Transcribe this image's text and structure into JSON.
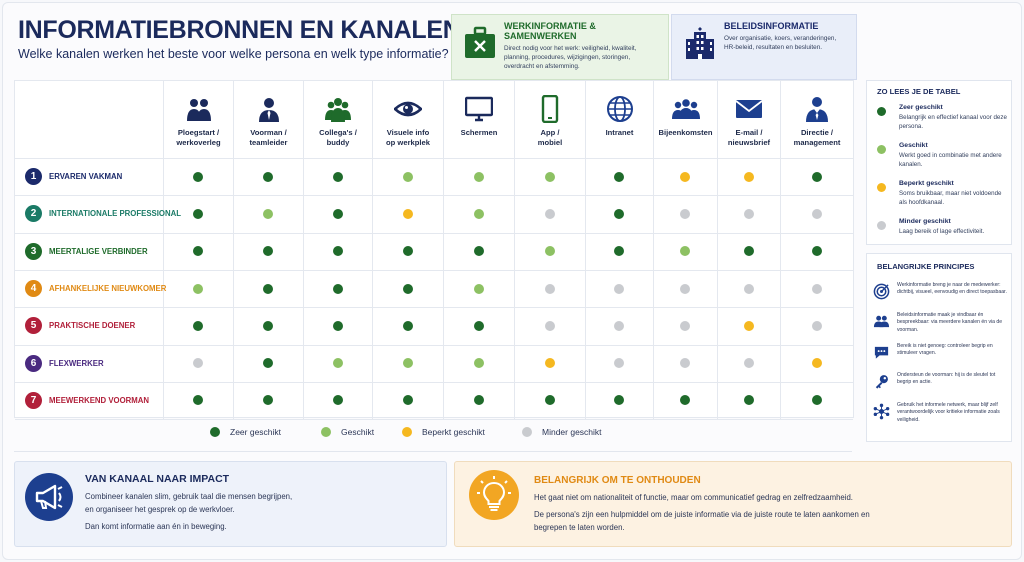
{
  "header": {
    "title": "INFORMATIEBRONNEN EN KANALEN",
    "subtitle": "Welke kanalen werken het beste voor welke persona en welk type informatie?"
  },
  "info_boxes": {
    "werk": {
      "title": "WERKINFORMATIE & SAMENWERKEN",
      "lines": [
        "Direct nodig voor het werk: veiligheid, kwaliteit,",
        "planning, procedures, wijzigingen, storingen,",
        "overdracht en afstemming."
      ],
      "icon": "briefcase-icon",
      "color": "#1f6b2b"
    },
    "beleid": {
      "title": "BELEIDSINFORMATIE",
      "lines": [
        "Over organisatie, koers, veranderingen,",
        "HR-beleid, resultaten en besluiten."
      ],
      "icon": "building-icon",
      "color": "#1b2a6b"
    }
  },
  "channels": [
    {
      "label": [
        "Ploegstart /",
        "werkoverleg"
      ],
      "icon": "team-meeting-icon",
      "color": "#1b2a5c"
    },
    {
      "label": [
        "Voorman /",
        "teamleider"
      ],
      "icon": "supervisor-icon",
      "color": "#1b2a5c"
    },
    {
      "label": [
        "Collega's /",
        "buddy"
      ],
      "icon": "colleagues-icon",
      "color": "#1f6b2b"
    },
    {
      "label": [
        "Visuele info",
        "op werkplek"
      ],
      "icon": "eye-icon",
      "color": "#1b2a5c"
    },
    {
      "label": [
        "Schermen"
      ],
      "icon": "monitor-icon",
      "color": "#1b2a5c"
    },
    {
      "label": [
        "App /",
        "mobiel"
      ],
      "icon": "mobile-icon",
      "color": "#1f6b2b"
    },
    {
      "label": [
        "Intranet"
      ],
      "icon": "globe-icon",
      "color": "#1d3f8f"
    },
    {
      "label": [
        "Bijeenkomsten"
      ],
      "icon": "group-icon",
      "color": "#1d3f8f"
    },
    {
      "label": [
        "E-mail /",
        "nieuwsbrief"
      ],
      "icon": "envelope-icon",
      "color": "#1d3f8f"
    },
    {
      "label": [
        "Directie /",
        "management"
      ],
      "icon": "manager-icon",
      "color": "#1d3f8f"
    }
  ],
  "personas": [
    {
      "num": "1",
      "name": "ERVAREN VAKMAN",
      "color": "#1b2a6b",
      "ratings": [
        3,
        3,
        3,
        2,
        2,
        2,
        3,
        1,
        1,
        3
      ]
    },
    {
      "num": "2",
      "name": "INTERNATIONALE PROFESSIONAL",
      "color": "#1a7a66",
      "ratings": [
        3,
        2,
        3,
        1,
        2,
        0,
        3,
        0,
        0,
        0
      ]
    },
    {
      "num": "3",
      "name": "MEERTALIGE VERBINDER",
      "color": "#1f6b2b",
      "ratings": [
        3,
        3,
        3,
        3,
        3,
        2,
        3,
        2,
        3,
        3
      ]
    },
    {
      "num": "4",
      "name": "AFHANKELIJKE NIEUWKOMER",
      "color": "#e08a14",
      "ratings": [
        2,
        3,
        3,
        3,
        2,
        0,
        0,
        0,
        0,
        0
      ]
    },
    {
      "num": "5",
      "name": "PRAKTISCHE DOENER",
      "color": "#b1203a",
      "ratings": [
        3,
        3,
        3,
        3,
        3,
        0,
        0,
        0,
        1,
        0
      ]
    },
    {
      "num": "6",
      "name": "FLEXWERKER",
      "color": "#4a2a80",
      "ratings": [
        0,
        3,
        2,
        2,
        2,
        1,
        0,
        0,
        0,
        1
      ]
    },
    {
      "num": "7",
      "name": "MEEWERKEND VOORMAN",
      "color": "#b1203a",
      "ratings": [
        3,
        3,
        3,
        3,
        3,
        3,
        3,
        3,
        3,
        3
      ]
    }
  ],
  "rating_colors": {
    "3": "#1f6b2b",
    "2": "#8dc163",
    "1": "#f5b820",
    "0": "#c9cbcf"
  },
  "legend": [
    {
      "level": "3",
      "label": "Zeer geschikt"
    },
    {
      "level": "2",
      "label": "Geschikt"
    },
    {
      "level": "1",
      "label": "Beperkt geschikt"
    },
    {
      "level": "0",
      "label": "Minder geschikt"
    }
  ],
  "how_to_read": {
    "title": "ZO LEES JE DE TABEL",
    "items": [
      {
        "level": "3",
        "title": "Zeer geschikt",
        "desc": "Belangrijk en effectief kanaal voor deze persona."
      },
      {
        "level": "2",
        "title": "Geschikt",
        "desc": "Werkt goed in combinatie met andere kanalen."
      },
      {
        "level": "1",
        "title": "Beperkt geschikt",
        "desc": "Soms bruikbaar, maar niet voldoende als hoofdkanaal."
      },
      {
        "level": "0",
        "title": "Minder geschikt",
        "desc": "Laag bereik of lage effectiviteit."
      }
    ]
  },
  "principles": {
    "title": "BELANGRIJKE PRINCIPES",
    "items": [
      {
        "icon": "target-icon",
        "text": "Werkinformatie breng je naar de medewerker: dichtbij, visueel, eenvoudig en direct toepasbaar."
      },
      {
        "icon": "people-icon",
        "text": "Beleidsinformatie maak je vindbaar én bespreekbaar: via meerdere kanalen én via de voorman."
      },
      {
        "icon": "chat-icon",
        "text": "Bereik is niet genoeg: controleer begrip en stimuleer vragen."
      },
      {
        "icon": "key-icon",
        "text": "Ondersteun de voorman: hij is de sleutel tot begrip en actie."
      },
      {
        "icon": "network-icon",
        "text": "Gebruik het informele netwerk, maar blijf zelf verantwoordelijk voor kritieke informatie zoals veiligheid."
      }
    ]
  },
  "impact": {
    "title": "VAN KANAAL NAAR IMPACT",
    "lines": [
      "Combineer kanalen slim, gebruik taal die mensen begrijpen,",
      "en organiseer het gesprek op de werkvloer.",
      "Dan komt informatie aan én in beweging."
    ]
  },
  "remember": {
    "title": "BELANGRIJK OM TE ONTHOUDEN",
    "lines": [
      "Het gaat niet om nationaliteit of functie, maar om communicatief gedrag en zelfredzaamheid.",
      "De persona's zijn een hulpmiddel om de juiste informatie via de juiste route te laten aankomen en",
      "begrepen te laten worden."
    ]
  }
}
